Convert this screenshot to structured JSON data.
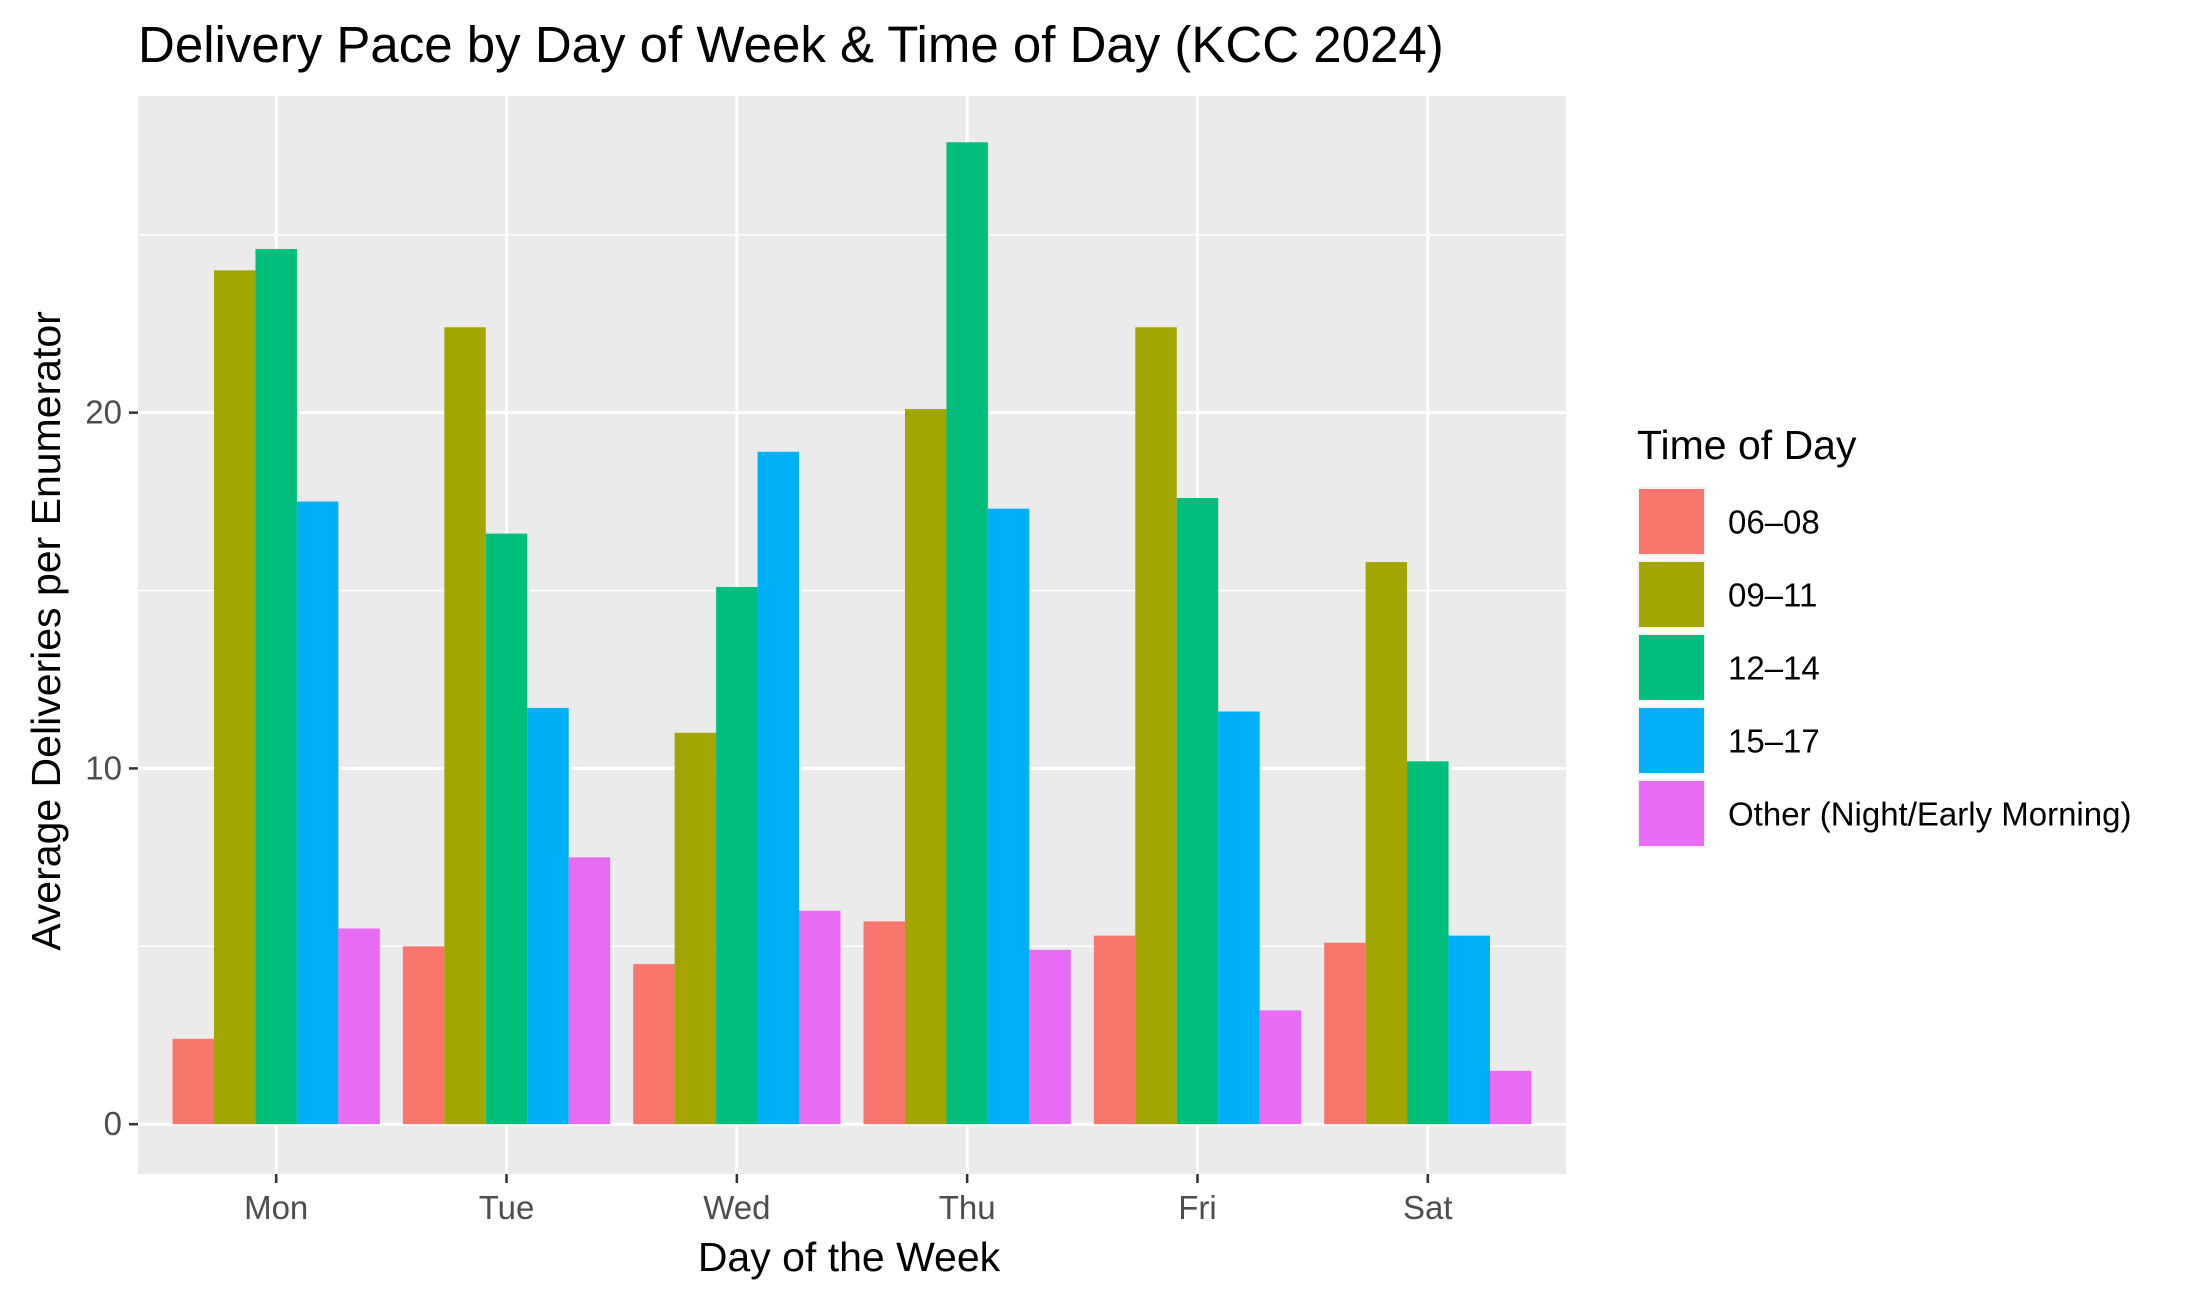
{
  "chart_data": {
    "type": "bar",
    "title": "Delivery Pace by Day of Week & Time of Day (KCC 2024)",
    "xlabel": "Day of the Week",
    "ylabel": "Average Deliveries per Enumerator",
    "categories": [
      "Mon",
      "Tue",
      "Wed",
      "Thu",
      "Fri",
      "Sat"
    ],
    "ylim": [
      -1.4,
      28.9
    ],
    "yticks": [
      0,
      10,
      20
    ],
    "grid": true,
    "legend": {
      "title": "Time of Day",
      "placement": "right"
    },
    "series": [
      {
        "name": "06–08",
        "color": "#F8766D",
        "values": [
          2.4,
          5.0,
          4.5,
          5.7,
          5.3,
          5.1
        ]
      },
      {
        "name": "09–11",
        "color": "#A3A500",
        "values": [
          24.0,
          22.4,
          11.0,
          20.1,
          22.4,
          15.8
        ]
      },
      {
        "name": "12–14",
        "color": "#00BF7D",
        "values": [
          24.6,
          16.6,
          15.1,
          27.6,
          17.6,
          10.2
        ]
      },
      {
        "name": "15–17",
        "color": "#00B0F6",
        "values": [
          17.5,
          11.7,
          18.9,
          17.3,
          11.6,
          5.3
        ]
      },
      {
        "name": "Other (Night/Early Morning)",
        "color": "#E76BF3",
        "values": [
          5.5,
          7.5,
          6.0,
          4.9,
          3.2,
          1.5
        ]
      }
    ],
    "panel_background": "#EBEBEB",
    "grid_color": "#FFFFFF"
  }
}
